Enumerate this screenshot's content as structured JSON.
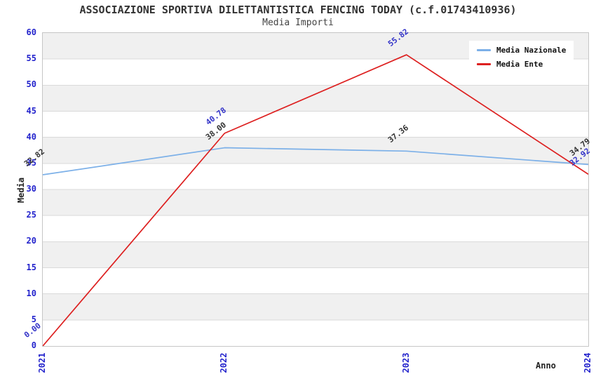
{
  "title": "ASSOCIAZIONE SPORTIVA DILETTANTISTICA FENCING TODAY (c.f.01743410936)",
  "subtitle": "Media Importi",
  "axes": {
    "x_title": "Anno",
    "y_title": "Media",
    "x_ticks": [
      "2021",
      "2022",
      "2023",
      "2024"
    ],
    "y_ticks": [
      0,
      5,
      10,
      15,
      20,
      25,
      30,
      35,
      40,
      45,
      50,
      55,
      60
    ],
    "tick_color": "#2323cc"
  },
  "legend": {
    "position": "top-right",
    "items": [
      {
        "label": "Media Nazionale",
        "color": "#7cb0e8"
      },
      {
        "label": "Media Ente",
        "color": "#dd2020"
      }
    ]
  },
  "chart_data": {
    "type": "line",
    "title": "Media Importi",
    "x": [
      "2021",
      "2022",
      "2023",
      "2024"
    ],
    "xlabel": "Anno",
    "ylabel": "Media",
    "ylim": [
      0,
      60
    ],
    "ytick_step": 5,
    "grid": "horizontal-bands",
    "legend_position": "top-right",
    "series": [
      {
        "name": "Media Nazionale",
        "color": "#7cb0e8",
        "values": [
          32.82,
          38.0,
          37.36,
          34.79
        ],
        "point_labels": [
          "32.82",
          "38.00",
          "37.36",
          "34.79"
        ],
        "label_color": "#333333"
      },
      {
        "name": "Media Ente",
        "color": "#dd2020",
        "values": [
          0.0,
          40.78,
          55.82,
          32.92
        ],
        "point_labels": [
          "0.00",
          "40.78",
          "55.82",
          "32.92"
        ],
        "label_color": "#3232c8"
      }
    ]
  },
  "colors": {
    "band": "#f0f0f0",
    "gridline": "#dadada",
    "plot_border": "#c6c6c6",
    "background": "#ffffff",
    "title_color": "#333333"
  }
}
